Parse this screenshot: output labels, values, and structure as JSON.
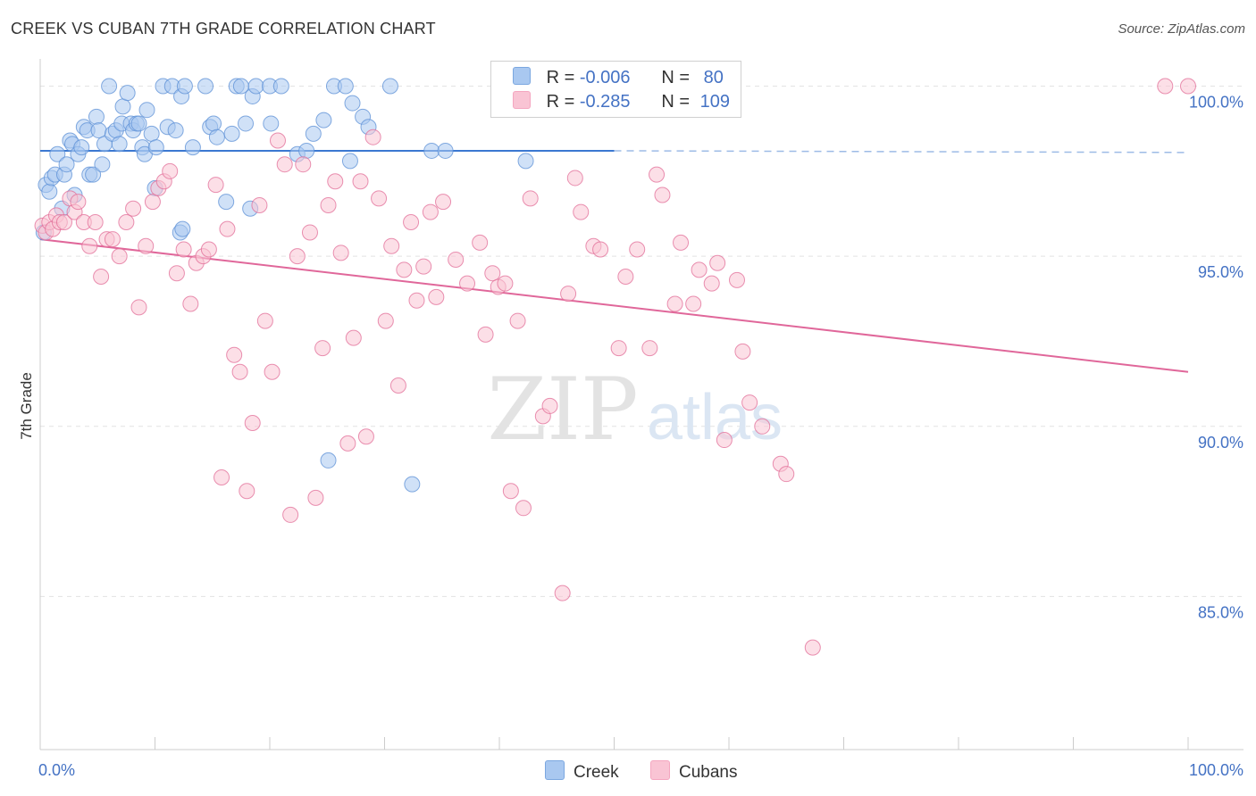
{
  "header": {
    "title": "CREEK VS CUBAN 7TH GRADE CORRELATION CHART",
    "source": "Source: ZipAtlas.com"
  },
  "watermark": {
    "zip": "ZIP",
    "atlas": "atlas"
  },
  "legend": {
    "r_label": "R =",
    "n_label": "N =",
    "rows": [
      {
        "r": "-0.006",
        "n": "80",
        "color": "#7ba7e0"
      },
      {
        "r": "-0.285",
        "n": "109",
        "color": "#f4a6c0"
      }
    ]
  },
  "bottom_legend": [
    {
      "label": "Creek",
      "color": "#a9c8f0"
    },
    {
      "label": "Cubans",
      "color": "#f9c4d4"
    }
  ],
  "chart_data": {
    "type": "scatter",
    "title": "CREEK VS CUBAN 7TH GRADE CORRELATION CHART",
    "xlabel": "",
    "ylabel": "7th Grade",
    "xlim": [
      0,
      100
    ],
    "ylim": [
      80.5,
      100.8
    ],
    "x_tick_labels": [
      "0.0%",
      "100.0%"
    ],
    "y_ticks": [
      100,
      95,
      90,
      85
    ],
    "y_tick_labels": [
      "100.0%",
      "95.0%",
      "90.0%",
      "85.0%"
    ],
    "grid": "horizontal dashed",
    "legend_position": "top-center",
    "series": [
      {
        "name": "Creek",
        "color": "#5b8fd6",
        "fill": "#a9c8f0",
        "trend": {
          "x0": 0,
          "y0": 98.1,
          "x1": 50,
          "y1": 98.1,
          "dashed_to": 100,
          "y_end": 98.05
        },
        "points": [
          [
            0.3,
            95.7
          ],
          [
            0.5,
            97.1
          ],
          [
            0.8,
            96.9
          ],
          [
            1.0,
            97.3
          ],
          [
            1.3,
            97.4
          ],
          [
            1.5,
            98.0
          ],
          [
            1.9,
            96.4
          ],
          [
            2.1,
            97.4
          ],
          [
            2.3,
            97.7
          ],
          [
            2.6,
            98.4
          ],
          [
            2.8,
            98.3
          ],
          [
            3.0,
            96.8
          ],
          [
            3.3,
            98.0
          ],
          [
            3.6,
            98.2
          ],
          [
            3.8,
            98.8
          ],
          [
            4.1,
            98.7
          ],
          [
            4.3,
            97.4
          ],
          [
            4.6,
            97.4
          ],
          [
            4.9,
            99.1
          ],
          [
            5.1,
            98.7
          ],
          [
            5.4,
            97.7
          ],
          [
            5.6,
            98.3
          ],
          [
            6.0,
            100.0
          ],
          [
            6.3,
            98.6
          ],
          [
            6.6,
            98.7
          ],
          [
            6.9,
            98.3
          ],
          [
            7.1,
            98.9
          ],
          [
            7.2,
            99.4
          ],
          [
            7.6,
            99.8
          ],
          [
            7.9,
            98.9
          ],
          [
            8.1,
            98.7
          ],
          [
            8.4,
            98.9
          ],
          [
            8.6,
            98.9
          ],
          [
            8.9,
            98.2
          ],
          [
            9.1,
            98.0
          ],
          [
            9.3,
            99.3
          ],
          [
            9.7,
            98.6
          ],
          [
            10.0,
            97.0
          ],
          [
            10.1,
            98.2
          ],
          [
            10.7,
            100.0
          ],
          [
            11.1,
            98.8
          ],
          [
            11.5,
            100.0
          ],
          [
            11.8,
            98.7
          ],
          [
            12.2,
            95.7
          ],
          [
            12.3,
            99.7
          ],
          [
            12.4,
            95.8
          ],
          [
            12.6,
            100.0
          ],
          [
            13.3,
            98.2
          ],
          [
            14.4,
            100.0
          ],
          [
            14.8,
            98.8
          ],
          [
            15.1,
            98.9
          ],
          [
            15.4,
            98.5
          ],
          [
            16.2,
            96.6
          ],
          [
            16.7,
            98.6
          ],
          [
            17.1,
            100.0
          ],
          [
            17.5,
            100.0
          ],
          [
            17.9,
            98.9
          ],
          [
            18.3,
            96.4
          ],
          [
            18.5,
            99.7
          ],
          [
            18.8,
            100.0
          ],
          [
            20.0,
            100.0
          ],
          [
            20.1,
            98.9
          ],
          [
            21.0,
            100.0
          ],
          [
            22.4,
            98.0
          ],
          [
            23.2,
            98.1
          ],
          [
            23.8,
            98.6
          ],
          [
            24.7,
            99.0
          ],
          [
            25.1,
            89.0
          ],
          [
            25.6,
            100.0
          ],
          [
            26.6,
            100.0
          ],
          [
            27.0,
            97.8
          ],
          [
            27.2,
            99.5
          ],
          [
            28.1,
            99.1
          ],
          [
            28.6,
            98.8
          ],
          [
            30.5,
            100.0
          ],
          [
            32.4,
            88.3
          ],
          [
            34.1,
            98.1
          ],
          [
            35.3,
            98.1
          ],
          [
            42.3,
            97.8
          ],
          [
            44.5,
            100.0
          ]
        ]
      },
      {
        "name": "Cubans",
        "color": "#e26c97",
        "fill": "#f9c4d4",
        "trend": {
          "x0": 0,
          "y0": 95.5,
          "x1": 100,
          "y1": 91.6
        },
        "points": [
          [
            0.2,
            95.9
          ],
          [
            0.5,
            95.7
          ],
          [
            0.8,
            96.0
          ],
          [
            1.1,
            95.8
          ],
          [
            1.4,
            96.2
          ],
          [
            1.7,
            96.0
          ],
          [
            2.1,
            96.0
          ],
          [
            2.6,
            96.7
          ],
          [
            3.0,
            96.3
          ],
          [
            3.3,
            96.6
          ],
          [
            3.8,
            96.0
          ],
          [
            4.3,
            95.3
          ],
          [
            4.8,
            96.0
          ],
          [
            5.3,
            94.4
          ],
          [
            5.8,
            95.5
          ],
          [
            6.3,
            95.5
          ],
          [
            6.9,
            95.0
          ],
          [
            7.5,
            96.0
          ],
          [
            8.1,
            96.4
          ],
          [
            8.6,
            93.5
          ],
          [
            9.2,
            95.3
          ],
          [
            9.8,
            96.6
          ],
          [
            10.3,
            97.0
          ],
          [
            10.8,
            97.2
          ],
          [
            11.3,
            97.5
          ],
          [
            11.9,
            94.5
          ],
          [
            12.5,
            95.2
          ],
          [
            13.1,
            93.6
          ],
          [
            13.6,
            94.8
          ],
          [
            14.2,
            95.0
          ],
          [
            14.7,
            95.2
          ],
          [
            15.3,
            97.1
          ],
          [
            15.8,
            88.5
          ],
          [
            16.3,
            95.8
          ],
          [
            16.9,
            92.1
          ],
          [
            17.4,
            91.6
          ],
          [
            18.0,
            88.1
          ],
          [
            18.5,
            90.1
          ],
          [
            19.1,
            96.5
          ],
          [
            19.6,
            93.1
          ],
          [
            20.2,
            91.6
          ],
          [
            20.7,
            98.4
          ],
          [
            21.3,
            97.7
          ],
          [
            21.8,
            87.4
          ],
          [
            22.4,
            95.0
          ],
          [
            22.9,
            97.7
          ],
          [
            23.5,
            95.7
          ],
          [
            24.0,
            87.9
          ],
          [
            24.6,
            92.3
          ],
          [
            25.1,
            96.5
          ],
          [
            25.7,
            97.2
          ],
          [
            26.2,
            95.1
          ],
          [
            26.8,
            89.5
          ],
          [
            27.3,
            92.6
          ],
          [
            27.9,
            97.2
          ],
          [
            28.4,
            89.7
          ],
          [
            29.0,
            98.5
          ],
          [
            29.5,
            96.7
          ],
          [
            30.1,
            93.1
          ],
          [
            30.6,
            95.3
          ],
          [
            31.2,
            91.2
          ],
          [
            31.7,
            94.6
          ],
          [
            32.3,
            96.0
          ],
          [
            32.8,
            93.7
          ],
          [
            33.4,
            94.7
          ],
          [
            34.0,
            96.3
          ],
          [
            34.5,
            93.8
          ],
          [
            35.1,
            96.6
          ],
          [
            36.2,
            94.9
          ],
          [
            37.2,
            94.2
          ],
          [
            38.3,
            95.4
          ],
          [
            38.8,
            92.7
          ],
          [
            39.4,
            94.5
          ],
          [
            39.9,
            94.1
          ],
          [
            40.5,
            94.2
          ],
          [
            41.0,
            88.1
          ],
          [
            41.6,
            93.1
          ],
          [
            42.1,
            87.6
          ],
          [
            42.7,
            96.7
          ],
          [
            43.8,
            90.3
          ],
          [
            44.4,
            90.6
          ],
          [
            45.5,
            85.1
          ],
          [
            46.0,
            93.9
          ],
          [
            46.6,
            97.3
          ],
          [
            47.1,
            96.3
          ],
          [
            48.2,
            95.3
          ],
          [
            48.8,
            95.2
          ],
          [
            50.4,
            92.3
          ],
          [
            51.0,
            94.4
          ],
          [
            52.0,
            95.2
          ],
          [
            53.1,
            92.3
          ],
          [
            53.7,
            97.4
          ],
          [
            54.2,
            96.8
          ],
          [
            55.3,
            93.6
          ],
          [
            55.8,
            95.4
          ],
          [
            56.9,
            93.6
          ],
          [
            57.4,
            94.6
          ],
          [
            58.5,
            94.2
          ],
          [
            59.0,
            94.8
          ],
          [
            59.6,
            89.6
          ],
          [
            60.7,
            94.3
          ],
          [
            61.2,
            92.2
          ],
          [
            61.8,
            90.7
          ],
          [
            62.9,
            90.0
          ],
          [
            64.5,
            88.9
          ],
          [
            65.0,
            88.6
          ],
          [
            67.3,
            83.5
          ],
          [
            98.0,
            100.0
          ],
          [
            100.0,
            100.0
          ]
        ]
      }
    ]
  }
}
